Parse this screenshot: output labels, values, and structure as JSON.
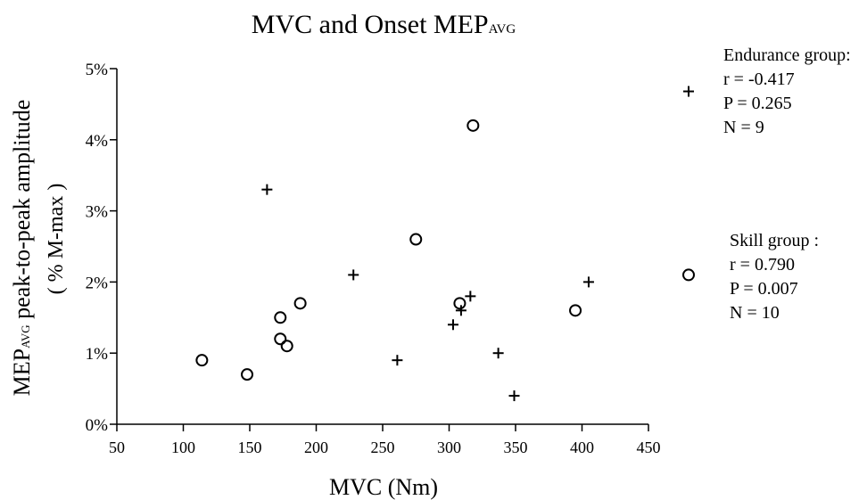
{
  "chart_data": {
    "type": "scatter",
    "title": "MVC and Onset MEP",
    "title_subscript": "AVG",
    "xlabel": "MVC (Nm)",
    "ylabel_prefix": "MEP",
    "ylabel_subscript": "AVG",
    "ylabel_rest": " peak-to-peak amplitude",
    "ylabel_line2": "( % M-max )",
    "xlim": [
      50,
      450
    ],
    "ylim": [
      0,
      5
    ],
    "x_ticks": [
      50,
      100,
      150,
      200,
      250,
      300,
      350,
      400,
      450
    ],
    "x_tick_labels": [
      "50",
      "100",
      "150",
      "200",
      "250",
      "300",
      "350",
      "400",
      "450"
    ],
    "y_ticks": [
      0,
      1,
      2,
      3,
      4,
      5
    ],
    "y_tick_labels": [
      "0%",
      "1%",
      "2%",
      "3%",
      "4%",
      "5%"
    ],
    "grid": false,
    "legend_placement": "right",
    "series": [
      {
        "name": "Endurance group:",
        "marker": "plus",
        "stats": [
          "r = -0.417",
          "P = 0.265",
          "N = 9"
        ],
        "points": [
          {
            "x": 163,
            "y": 3.3
          },
          {
            "x": 228,
            "y": 2.1
          },
          {
            "x": 261,
            "y": 0.9
          },
          {
            "x": 303,
            "y": 1.4
          },
          {
            "x": 309,
            "y": 1.6
          },
          {
            "x": 316,
            "y": 1.8
          },
          {
            "x": 337,
            "y": 1.0
          },
          {
            "x": 349,
            "y": 0.4
          },
          {
            "x": 405,
            "y": 2.0
          }
        ],
        "offscale_point": {
          "y": 4.68
        }
      },
      {
        "name": "Skill group :",
        "marker": "circle",
        "stats": [
          "r = 0.790",
          "P = 0.007",
          "N = 10"
        ],
        "points": [
          {
            "x": 114,
            "y": 0.9
          },
          {
            "x": 148,
            "y": 0.7
          },
          {
            "x": 173,
            "y": 1.5
          },
          {
            "x": 173,
            "y": 1.2
          },
          {
            "x": 178,
            "y": 1.1
          },
          {
            "x": 188,
            "y": 1.7
          },
          {
            "x": 275,
            "y": 2.6
          },
          {
            "x": 308,
            "y": 1.7
          },
          {
            "x": 318,
            "y": 4.2
          },
          {
            "x": 395,
            "y": 1.6
          }
        ],
        "offscale_point": {
          "y": 2.1
        }
      }
    ]
  }
}
